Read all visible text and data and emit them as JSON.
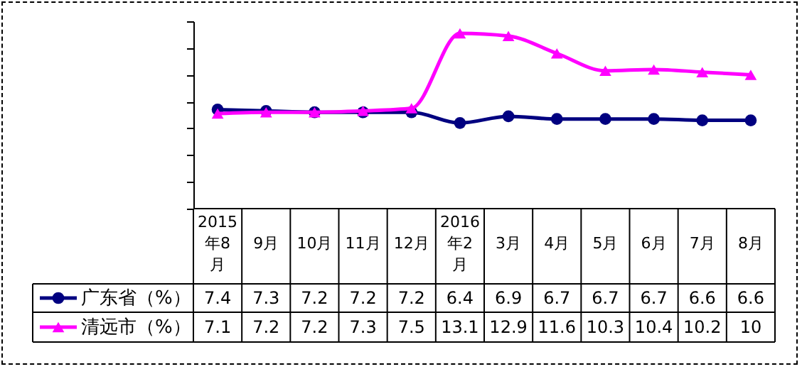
{
  "chart_data": {
    "type": "line",
    "categories": [
      "2015年8月",
      "9月",
      "10月",
      "11月",
      "12月",
      "2016年2月",
      "3月",
      "4月",
      "5月",
      "6月",
      "7月",
      "8月"
    ],
    "series": [
      {
        "name": "广东省（%）",
        "color": "#000080",
        "marker": "circle",
        "values": [
          7.4,
          7.3,
          7.2,
          7.2,
          7.2,
          6.4,
          6.9,
          6.7,
          6.7,
          6.7,
          6.6,
          6.6
        ]
      },
      {
        "name": "清远市（%）",
        "color": "#ff00ff",
        "marker": "triangle",
        "values": [
          7.1,
          7.2,
          7.2,
          7.3,
          7.5,
          13.1,
          12.9,
          11.6,
          10.3,
          10.4,
          10.2,
          10
        ]
      }
    ],
    "ylim": [
      0,
      14
    ],
    "yticks": [
      {
        "value": 0,
        "label": null
      },
      {
        "value": 2,
        "label": null
      },
      {
        "value": 4,
        "label": null
      },
      {
        "value": 6,
        "label": null
      },
      {
        "value": 8,
        "label": null
      },
      {
        "value": 10,
        "label": null
      },
      {
        "value": 12,
        "label": null
      },
      {
        "value": 14,
        "label": null
      }
    ],
    "data_labels": true,
    "legend": "bottom left"
  }
}
